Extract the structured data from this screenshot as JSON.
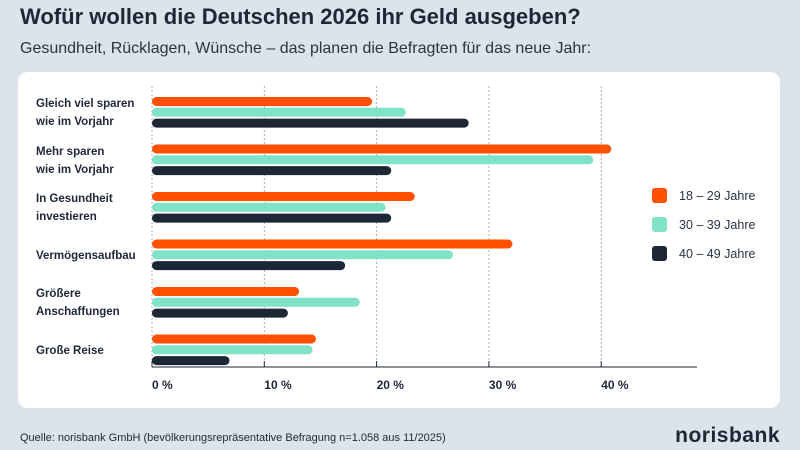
{
  "title": "Wofür wollen die Deutschen 2026 ihr Geld ausgeben?",
  "subtitle": "Gesundheit, Rücklagen, Wünsche – das planen die Befragten für das neue Jahr:",
  "source": "Quelle: norisbank GmbH (bevölkerungsrepräsentative Befragung n=1.058 aus 11/2025)",
  "logo": "norisbank",
  "chart_data": {
    "type": "bar",
    "orientation": "horizontal",
    "categories": [
      "Gleich viel sparen\nwie im Vorjahr",
      "Mehr sparen\nwie im Vorjahr",
      "In Gesundheit\ninvestieren",
      "Vermögensaufbau",
      "Größere\nAnschaffungen",
      "Große Reise"
    ],
    "series": [
      {
        "name": "18 – 29 Jahre",
        "color": "#ff5000",
        "values": [
          19.6,
          40.9,
          23.4,
          32.1,
          13.1,
          14.6
        ]
      },
      {
        "name": "30 – 39 Jahre",
        "color": "#80e2c6",
        "values": [
          22.6,
          39.3,
          20.8,
          26.8,
          18.5,
          14.3
        ]
      },
      {
        "name": "40 – 49 Jahre",
        "color": "#1e2735",
        "values": [
          28.2,
          21.3,
          21.3,
          17.2,
          12.1,
          6.9
        ]
      }
    ],
    "xticks": [
      "0 %",
      "10 %",
      "20 %",
      "30 %",
      "40 %"
    ],
    "xtick_values": [
      0,
      10,
      20,
      30,
      40
    ],
    "xlim": [
      0,
      45.5
    ],
    "grid": true,
    "legend": "right"
  }
}
